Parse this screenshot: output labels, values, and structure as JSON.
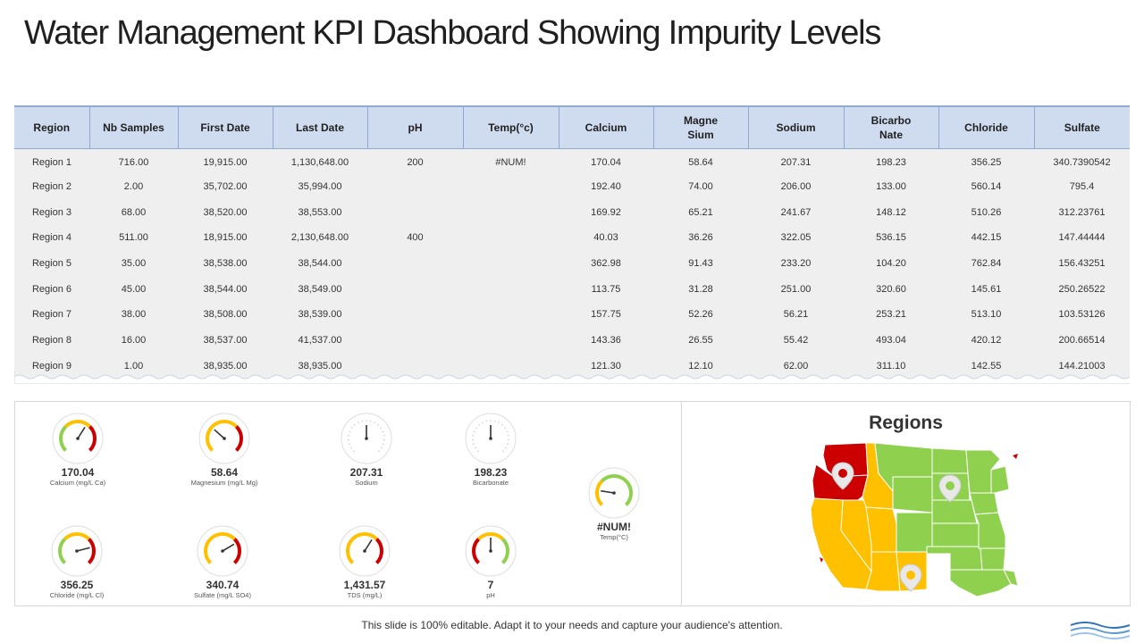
{
  "page": {
    "title": "Water Management KPI Dashboard Showing Impurity Levels",
    "footer": "This slide is 100% editable. Adapt it to your needs and capture your audience's attention."
  },
  "table": {
    "headers": [
      "Region",
      "Nb Samples",
      "First Date",
      "Last Date",
      "pH",
      "Temp(°c)",
      "Calcium",
      "Magne\nSium",
      "Sodium",
      "Bicarbo\nNate",
      "Chloride",
      "Sulfate"
    ],
    "rows": [
      [
        "Region 1",
        "716.00",
        "19,915.00",
        "1,130,648.00",
        "200",
        "#NUM!",
        "170.04",
        "58.64",
        "207.31",
        "198.23",
        "356.25",
        "340.7390542"
      ],
      [
        "Region 2",
        "2.00",
        "35,702.00",
        "35,994.00",
        "",
        "",
        "192.40",
        "74.00",
        "206.00",
        "133.00",
        "560.14",
        "795.4"
      ],
      [
        "Region 3",
        "68.00",
        "38,520.00",
        "38,553.00",
        "",
        "",
        "169.92",
        "65.21",
        "241.67",
        "148.12",
        "510.26",
        "312.23761"
      ],
      [
        "Region 4",
        "511.00",
        "18,915.00",
        "2,130,648.00",
        "400",
        "",
        "40.03",
        "36.26",
        "322.05",
        "536.15",
        "442.15",
        "147.44444"
      ],
      [
        "Region 5",
        "35.00",
        "38,538.00",
        "38,544.00",
        "",
        "",
        "362.98",
        "91.43",
        "233.20",
        "104.20",
        "762.84",
        "156.43251"
      ],
      [
        "Region 6",
        "45.00",
        "38,544.00",
        "38,549.00",
        "",
        "",
        "113.75",
        "31.28",
        "251.00",
        "320.60",
        "145.61",
        "250.26522"
      ],
      [
        "Region 7",
        "38.00",
        "38,508.00",
        "38,539.00",
        "",
        "",
        "157.75",
        "52.26",
        "56.21",
        "253.21",
        "513.10",
        "103.53126"
      ],
      [
        "Region 8",
        "16.00",
        "38,537.00",
        "41,537.00",
        "",
        "",
        "143.36",
        "26.55",
        "55.42",
        "493.04",
        "420.12",
        "200.66514"
      ],
      [
        "Region 9",
        "1.00",
        "38,935.00",
        "38,935.00",
        "",
        "",
        "121.30",
        "12.10",
        "62.00",
        "311.10",
        "142.55",
        "144.21003"
      ]
    ]
  },
  "gauges": [
    {
      "id": "calcium",
      "value": "170.04",
      "label": "Calcium (mg/L Ca)",
      "needle_level": 0.62,
      "colored": true,
      "scheme": "green-red"
    },
    {
      "id": "magnesium",
      "value": "58.64",
      "label": "Magnesium  (mg/L Mg)",
      "needle_level": 0.32,
      "colored": true,
      "scheme": "yellow-red"
    },
    {
      "id": "sodium",
      "value": "207.31",
      "label": "Sodium",
      "needle_level": 0.5,
      "colored": false
    },
    {
      "id": "bicarbonate",
      "value": "198.23",
      "label": "Bicarbonate",
      "needle_level": 0.5,
      "colored": false
    },
    {
      "id": "temp",
      "value": "#NUM!",
      "label": "Temp(°C)",
      "needle_level": 0.2,
      "colored": true,
      "scheme": "yellow-green"
    },
    {
      "id": "chloride",
      "value": "356.25",
      "label": "Chloride (mg/L Cl)",
      "needle_level": 0.78,
      "colored": true,
      "scheme": "green-red"
    },
    {
      "id": "sulfate",
      "value": "340.74",
      "label": "Sulfate  (mg/L SO4)",
      "needle_level": 0.72,
      "colored": true,
      "scheme": "yellow-red"
    },
    {
      "id": "tds",
      "value": "1,431.57",
      "label": "TDS (mg/L)",
      "needle_level": 0.62,
      "colored": true,
      "scheme": "yellow-red"
    },
    {
      "id": "ph",
      "value": "7",
      "label": "pH",
      "needle_level": 0.5,
      "colored": true,
      "scheme": "red-green"
    }
  ],
  "map": {
    "title": "Regions",
    "colors": {
      "high": "#cc0000",
      "medium": "#ffc000",
      "low": "#8fd14f"
    },
    "pins": [
      "map-pin-icon",
      "map-pin-icon",
      "map-pin-icon"
    ]
  }
}
